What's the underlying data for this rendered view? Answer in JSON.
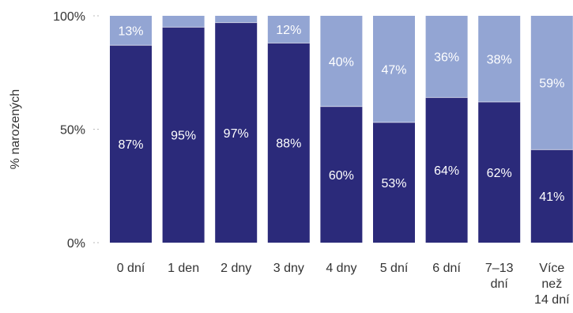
{
  "chart_data": {
    "type": "bar",
    "stacked": true,
    "title": "",
    "xlabel": "",
    "ylabel": "% narozených",
    "ylim": [
      0,
      100
    ],
    "yticks": [
      {
        "value": 0,
        "label": "0%"
      },
      {
        "value": 50,
        "label": "50%"
      },
      {
        "value": 100,
        "label": "100%"
      }
    ],
    "categories": [
      [
        "0 dní"
      ],
      [
        "1 den"
      ],
      [
        "2 dny"
      ],
      [
        "3 dny"
      ],
      [
        "4 dny"
      ],
      [
        "5 dní"
      ],
      [
        "6 dní"
      ],
      [
        "7–13",
        "dní"
      ],
      [
        "Více",
        "než",
        "14 dní"
      ]
    ],
    "series": [
      {
        "color": "#2b2a7a",
        "values": [
          87,
          95,
          97,
          88,
          60,
          53,
          64,
          62,
          41
        ],
        "labels": [
          "87%",
          "95%",
          "97%",
          "88%",
          "60%",
          "53%",
          "64%",
          "62%",
          "41%"
        ]
      },
      {
        "color": "#93a5d3",
        "values": [
          13,
          5,
          3,
          12,
          40,
          47,
          36,
          38,
          59
        ],
        "labels": [
          "13%",
          "",
          "",
          "12%",
          "40%",
          "47%",
          "36%",
          "38%",
          "59%"
        ]
      }
    ],
    "grid": false,
    "legend": "none"
  }
}
